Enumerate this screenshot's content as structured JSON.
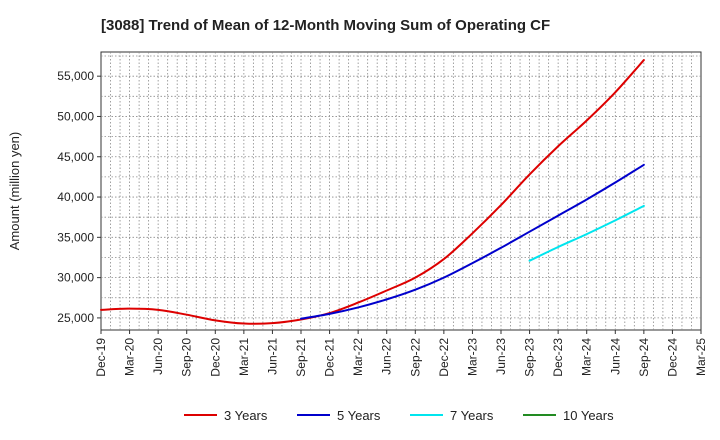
{
  "chart_data": {
    "type": "line",
    "title": "[3088]  Trend of Mean of 12-Month Moving Sum of Operating CF",
    "xlabel": "",
    "ylabel": "Amount (million yen)",
    "ylim": [
      23500,
      58000
    ],
    "yticks": [
      25000,
      30000,
      35000,
      40000,
      45000,
      50000,
      55000
    ],
    "ytick_labels": [
      "25,000",
      "30,000",
      "35,000",
      "40,000",
      "45,000",
      "50,000",
      "55,000"
    ],
    "x_categories": [
      "Dec-19",
      "Mar-20",
      "Jun-20",
      "Sep-20",
      "Dec-20",
      "Mar-21",
      "Jun-21",
      "Sep-21",
      "Dec-21",
      "Mar-22",
      "Jun-22",
      "Sep-22",
      "Dec-22",
      "Mar-23",
      "Jun-23",
      "Sep-23",
      "Dec-23",
      "Mar-24",
      "Jun-24",
      "Sep-24",
      "Dec-24",
      "Mar-25"
    ],
    "grid": true,
    "legend_position": "bottom",
    "series": [
      {
        "name": "3 Years",
        "color": "#dd0000",
        "points": [
          [
            "Dec-19",
            26000
          ],
          [
            "Mar-20",
            26150
          ],
          [
            "Jun-20",
            26000
          ],
          [
            "Sep-20",
            25400
          ],
          [
            "Dec-20",
            24700
          ],
          [
            "Mar-21",
            24300
          ],
          [
            "Jun-21",
            24350
          ],
          [
            "Sep-21",
            24800
          ],
          [
            "Dec-21",
            25600
          ],
          [
            "Mar-22",
            26900
          ],
          [
            "Jun-22",
            28400
          ],
          [
            "Sep-22",
            30000
          ],
          [
            "Dec-22",
            32300
          ],
          [
            "Mar-23",
            35500
          ],
          [
            "Jun-23",
            39000
          ],
          [
            "Sep-23",
            42800
          ],
          [
            "Dec-23",
            46300
          ],
          [
            "Mar-24",
            49500
          ],
          [
            "Jun-24",
            53000
          ],
          [
            "Sep-24",
            57000
          ]
        ]
      },
      {
        "name": "5 Years",
        "color": "#0000cc",
        "points": [
          [
            "Sep-21",
            24900
          ],
          [
            "Dec-21",
            25500
          ],
          [
            "Mar-22",
            26300
          ],
          [
            "Jun-22",
            27300
          ],
          [
            "Sep-22",
            28500
          ],
          [
            "Dec-22",
            30000
          ],
          [
            "Mar-23",
            31800
          ],
          [
            "Jun-23",
            33700
          ],
          [
            "Sep-23",
            35700
          ],
          [
            "Dec-23",
            37700
          ],
          [
            "Mar-24",
            39700
          ],
          [
            "Jun-24",
            41800
          ],
          [
            "Sep-24",
            44000
          ]
        ]
      },
      {
        "name": "7 Years",
        "color": "#00e5ee",
        "points": [
          [
            "Sep-23",
            32100
          ],
          [
            "Dec-23",
            33800
          ],
          [
            "Mar-24",
            35400
          ],
          [
            "Jun-24",
            37100
          ],
          [
            "Sep-24",
            38900
          ]
        ]
      },
      {
        "name": "10 Years",
        "color": "#228b22",
        "points": []
      }
    ]
  }
}
